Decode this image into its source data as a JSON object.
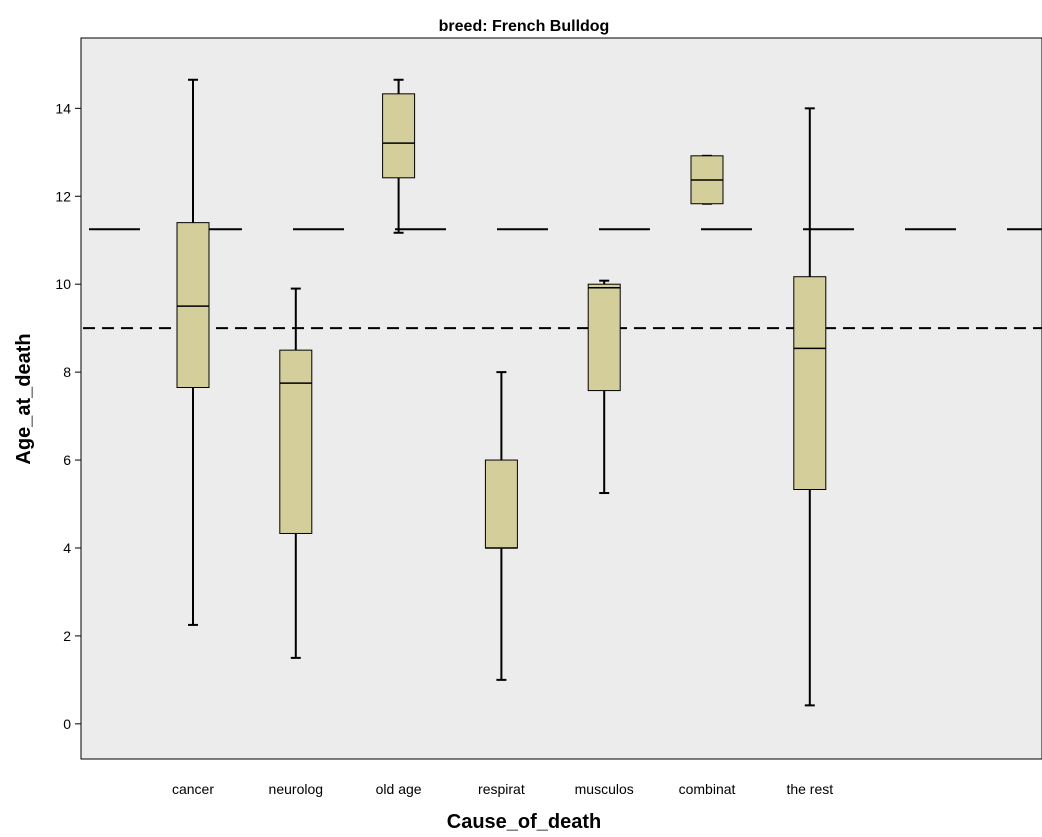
{
  "chart_data": {
    "type": "boxplot",
    "title": "breed: French Bulldog",
    "xlabel": "Cause_of_death",
    "ylabel": "Age_at_death",
    "ylim": [
      -0.8,
      15.6
    ],
    "yticks": [
      0,
      2,
      4,
      6,
      8,
      10,
      12,
      14
    ],
    "grid": false,
    "categories": [
      "cancer",
      "neurolog",
      "old age",
      "respirat",
      "musculos",
      "combinat",
      "the rest"
    ],
    "boxes": [
      {
        "category": "cancer",
        "min": 2.25,
        "q1": 7.65,
        "median": 9.5,
        "q3": 11.4,
        "max": 14.65
      },
      {
        "category": "neurolog",
        "min": 1.5,
        "q1": 4.33,
        "median": 7.75,
        "q3": 8.5,
        "max": 9.9
      },
      {
        "category": "old age",
        "min": 11.17,
        "q1": 12.42,
        "median": 13.21,
        "q3": 14.33,
        "max": 14.65
      },
      {
        "category": "respirat",
        "min": 1.0,
        "q1": 4.0,
        "median": 4.0,
        "q3": 6.0,
        "max": 8.0
      },
      {
        "category": "musculos",
        "min": 5.25,
        "q1": 7.58,
        "median": 9.92,
        "q3": 10.0,
        "max": 10.08
      },
      {
        "category": "combinat",
        "min": 11.83,
        "q1": 11.83,
        "median": 12.37,
        "q3": 12.92,
        "max": 12.92
      },
      {
        "category": "the rest",
        "min": 0.42,
        "q1": 5.33,
        "median": 8.54,
        "q3": 10.17,
        "max": 14.0
      }
    ],
    "reference_lines": [
      {
        "y": 11.25,
        "style": "long-dash"
      },
      {
        "y": 9.0,
        "style": "short-dash"
      }
    ],
    "colors": {
      "plot_background": "#ececec",
      "box_fill": "#d4cf9a",
      "stroke": "#000000"
    }
  }
}
